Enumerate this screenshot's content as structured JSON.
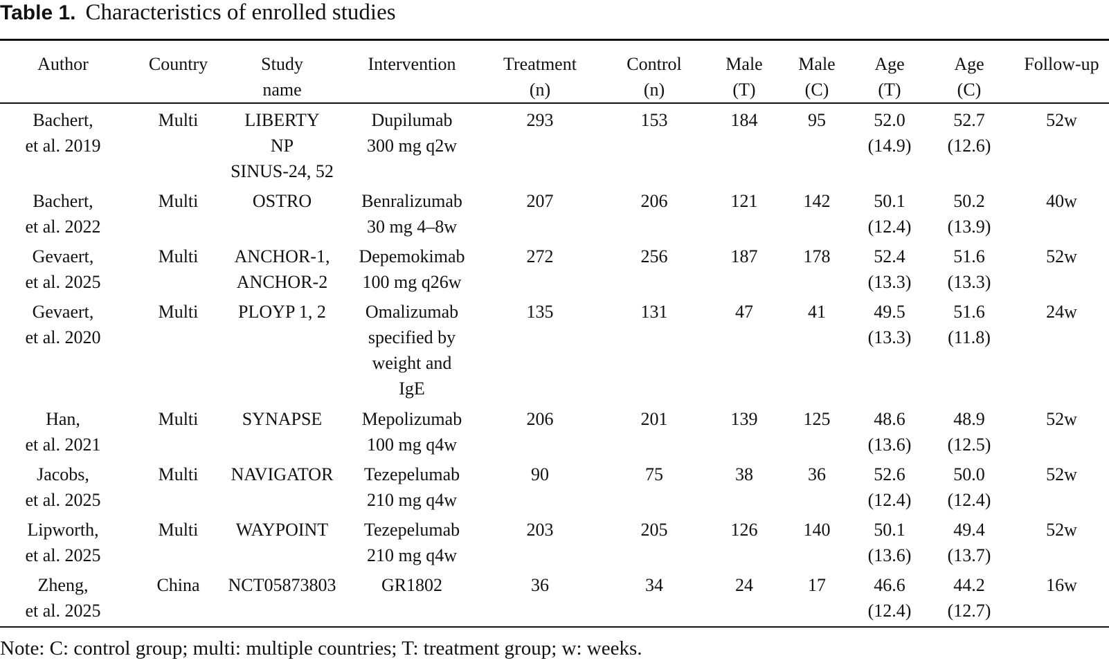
{
  "caption": {
    "label": "Table 1.",
    "title": "Characteristics of enrolled studies"
  },
  "table": {
    "headers": [
      "Author",
      "Country",
      "Study\nname",
      "Intervention",
      "Treatment\n(n)",
      "Control\n(n)",
      "Male\n(T)",
      "Male\n(C)",
      "Age\n(T)",
      "Age\n(C)",
      "Follow-up"
    ],
    "rows": [
      [
        "Bachert,\net al. 2019",
        "Multi",
        "LIBERTY\nNP\nSINUS-24, 52",
        "Dupilumab\n300 mg q2w",
        "293",
        "153",
        "184",
        "95",
        "52.0\n(14.9)",
        "52.7\n(12.6)",
        "52w"
      ],
      [
        "Bachert,\net al. 2022",
        "Multi",
        "OSTRO",
        "Benralizumab\n30 mg 4–8w",
        "207",
        "206",
        "121",
        "142",
        "50.1\n(12.4)",
        "50.2\n(13.9)",
        "40w"
      ],
      [
        "Gevaert,\net al. 2025",
        "Multi",
        "ANCHOR-1,\nANCHOR-2",
        "Depemokimab\n100 mg q26w",
        "272",
        "256",
        "187",
        "178",
        "52.4\n(13.3)",
        "51.6\n(13.3)",
        "52w"
      ],
      [
        "Gevaert,\net al. 2020",
        "Multi",
        "PLOYP 1, 2",
        "Omalizumab\nspecified by\nweight and\nIgE",
        "135",
        "131",
        "47",
        "41",
        "49.5\n(13.3)",
        "51.6\n(11.8)",
        "24w"
      ],
      [
        "Han,\net al. 2021",
        "Multi",
        "SYNAPSE",
        "Mepolizumab\n100 mg q4w",
        "206",
        "201",
        "139",
        "125",
        "48.6\n(13.6)",
        "48.9\n(12.5)",
        "52w"
      ],
      [
        "Jacobs,\net al. 2025",
        "Multi",
        "NAVIGATOR",
        "Tezepelumab\n210 mg q4w",
        "90",
        "75",
        "38",
        "36",
        "52.6\n(12.4)",
        "50.0\n(12.4)",
        "52w"
      ],
      [
        "Lipworth,\net al. 2025",
        "Multi",
        "WAYPOINT",
        "Tezepelumab\n210 mg q4w",
        "203",
        "205",
        "126",
        "140",
        "50.1\n(13.6)",
        "49.4\n(13.7)",
        "52w"
      ],
      [
        "Zheng,\net al. 2025",
        "China",
        "NCT05873803",
        "GR1802",
        "36",
        "34",
        "24",
        "17",
        "46.6\n(12.4)",
        "44.2\n(12.7)",
        "16w"
      ]
    ]
  },
  "note": "Note: C: control group; multi: multiple countries; T: treatment group; w: weeks."
}
